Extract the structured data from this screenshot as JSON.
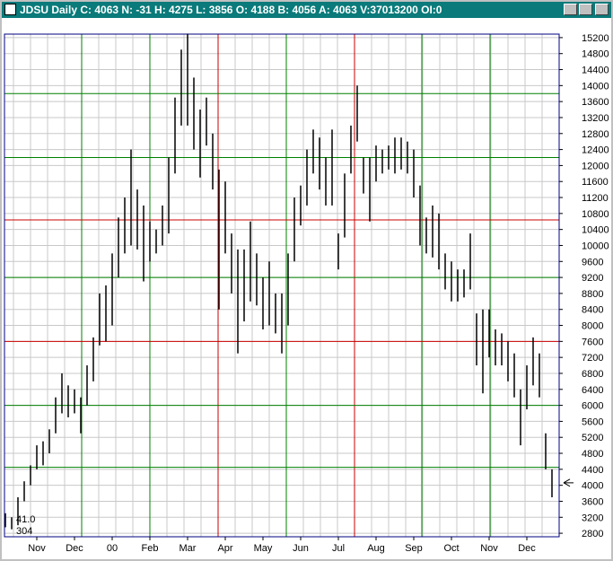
{
  "chart_data": {
    "type": "ohlc",
    "title": "JDSU Daily C: 4063 N: -31 H: 4275 L: 3856 O: 4188 B: 4056 A: 4063 V:37013200 OI:0",
    "high": [
      3300,
      3200,
      3700,
      4100,
      4500,
      5000,
      5100,
      5400,
      6200,
      6800,
      6500,
      6400,
      6200,
      7000,
      7700,
      8800,
      9000,
      9800,
      10700,
      11200,
      12400,
      11400,
      11000,
      10600,
      10400,
      11000,
      12200,
      13700,
      14900,
      15300,
      14200,
      13400,
      13700,
      12800,
      11900,
      11600,
      10300,
      9900,
      9900,
      10600,
      9800,
      9200,
      9600,
      8800,
      8800,
      9800,
      11200,
      11500,
      12400,
      12900,
      12700,
      12200,
      12900,
      10300,
      11800,
      13000,
      14000,
      12200,
      12200,
      12500,
      12400,
      12500,
      12700,
      12700,
      12600,
      12400,
      11500,
      10700,
      11000,
      10800,
      9800,
      9600,
      9400,
      9400,
      10300,
      8300,
      8400,
      8400,
      7900,
      7800,
      7600,
      7300,
      6400,
      7000,
      7700,
      7300,
      5300,
      4400
    ],
    "low": [
      2950,
      2900,
      3000,
      3600,
      4000,
      4400,
      4500,
      4800,
      5300,
      5800,
      5700,
      5800,
      5300,
      6000,
      6600,
      7500,
      7600,
      8000,
      9200,
      9800,
      10000,
      9900,
      9100,
      9600,
      9800,
      10000,
      10300,
      11800,
      13000,
      13000,
      12400,
      11700,
      12500,
      11400,
      8400,
      9800,
      8800,
      7300,
      8100,
      8600,
      8500,
      7900,
      8000,
      7800,
      7300,
      8000,
      9600,
      10500,
      11000,
      11800,
      11400,
      11000,
      11000,
      9400,
      10200,
      11800,
      12600,
      11300,
      10600,
      11600,
      11800,
      11900,
      11800,
      11900,
      11800,
      11200,
      10000,
      9800,
      9700,
      9400,
      8900,
      8600,
      8600,
      8700,
      8900,
      7000,
      6300,
      7200,
      7000,
      7000,
      6600,
      6200,
      5000,
      5900,
      6500,
      6200,
      4400,
      3700
    ],
    "color": "#000000",
    "ylim": [
      2600,
      15400
    ],
    "yticks": [
      2800,
      3200,
      3600,
      4000,
      4400,
      4800,
      5200,
      5600,
      6000,
      6400,
      6800,
      7200,
      7600,
      8000,
      8400,
      8800,
      9200,
      9600,
      10000,
      10400,
      10800,
      11200,
      11600,
      12000,
      12400,
      12800,
      13200,
      13600,
      14000,
      14400,
      14800,
      15200
    ],
    "xticks": [
      {
        "value": 5,
        "label": "Nov"
      },
      {
        "value": 11,
        "label": "Dec"
      },
      {
        "value": 17,
        "label": "00"
      },
      {
        "value": 23,
        "label": "Feb"
      },
      {
        "value": 29,
        "label": "Mar"
      },
      {
        "value": 35,
        "label": "Apr"
      },
      {
        "value": 41,
        "label": "May"
      },
      {
        "value": 47,
        "label": "Jun"
      },
      {
        "value": 53,
        "label": "Jul"
      },
      {
        "value": 59,
        "label": "Aug"
      },
      {
        "value": 65,
        "label": "Sep"
      },
      {
        "value": 71,
        "label": "Oct"
      },
      {
        "value": 77,
        "label": "Nov"
      },
      {
        "value": 83,
        "label": "Dec"
      }
    ],
    "levels": [
      {
        "value": 4450,
        "color": "#008000"
      },
      {
        "value": 6000,
        "color": "#008000"
      },
      {
        "value": 7600,
        "color": "#cc0000"
      },
      {
        "value": 9200,
        "color": "#008000"
      },
      {
        "value": 10640,
        "color": "#cc0000"
      },
      {
        "value": 12200,
        "color": "#008000"
      },
      {
        "value": 13800,
        "color": "#008000"
      }
    ],
    "marker": 4063,
    "annotations": [
      "41.0",
      "304"
    ],
    "grid": true
  }
}
